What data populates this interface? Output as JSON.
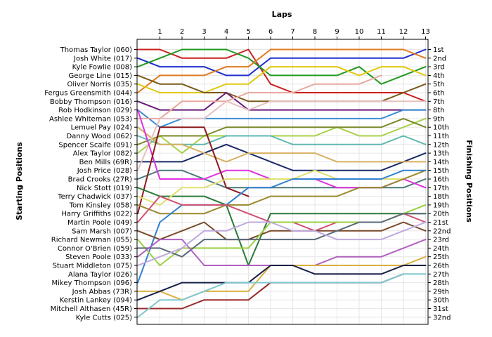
{
  "chart_data": {
    "type": "line",
    "title": "",
    "xlabel": "Laps",
    "ylabel_left": "Starting Positions",
    "ylabel_right": "Finishing Positions",
    "x": [
      0,
      1,
      2,
      3,
      4,
      5,
      6,
      7,
      8,
      9,
      10,
      11,
      12,
      13
    ],
    "xtick_labels": [
      "1",
      "2",
      "3",
      "4",
      "5",
      "6",
      "7",
      "8",
      "9",
      "10",
      "11",
      "12",
      "13"
    ],
    "ylim": [
      1,
      32
    ],
    "y_inverted": true,
    "grid": true,
    "starting_labels": [
      "Thomas Taylor (060)",
      "Josh White (017)",
      "Kyle Fowlie (008)",
      "George Line (015)",
      "Oliver Norris (035)",
      "Fergus Greensmith (044)",
      "Bobby Thompson (016)",
      "Rob Hodkinson (029)",
      "Ashlee Whiteman (053)",
      "Lemuel Pay (024)",
      "Danny Wood (062)",
      "Spencer Scaife (091)",
      "Alex Taylor (082)",
      "Ben Mills (69R)",
      "Josh Price (028)",
      "Brad Crooks (27R)",
      "Nick Stott (019)",
      "Terry Chadwick (037)",
      "Tom Kinsley (058)",
      "Harry Griffiths (022)",
      "Martin Poole (049)",
      "Sam Marsh (007)",
      "Richard Newman (055)",
      "Connor O'Brien (059)",
      "Steven Poole (033)",
      "Stuart Middleton (075)",
      "Alana Taylor (026)",
      "Mikey Thompson (096)",
      "Josh Abbas (73R)",
      "Kerstin Lankey (094)",
      "Mitchell Althasen (45R)",
      "Kyle Cutts (025)"
    ],
    "finishing_labels": [
      "1st",
      "2nd",
      "3rd",
      "4th",
      "5th",
      "6th",
      "7th",
      "8th",
      "9th",
      "10th",
      "11th",
      "12th",
      "13th",
      "14th",
      "15th",
      "16th",
      "17th",
      "18th",
      "19th",
      "20th",
      "21st",
      "22nd",
      "23rd",
      "24th",
      "25th",
      "26th",
      "27th",
      "28th",
      "29th",
      "30th",
      "31st",
      "32nd"
    ],
    "series": [
      {
        "color": "#cc1f1f",
        "values": [
          1,
          1,
          2,
          2,
          2,
          1,
          5,
          6,
          6,
          6,
          6,
          6,
          6,
          7
        ]
      },
      {
        "color": "#1f2fcf",
        "values": [
          2,
          3,
          3,
          3,
          4,
          4,
          2,
          2,
          2,
          2,
          2,
          2,
          2,
          1
        ]
      },
      {
        "color": "#229922",
        "values": [
          3,
          2,
          1,
          1,
          1,
          2,
          4,
          4,
          4,
          4,
          3,
          5,
          4,
          3
        ]
      },
      {
        "color": "#e07b20",
        "values": [
          6,
          4,
          4,
          4,
          3,
          3,
          1,
          1,
          1,
          1,
          1,
          1,
          1,
          2
        ]
      },
      {
        "color": "#e0c812",
        "values": [
          5,
          6,
          6,
          6,
          5,
          5,
          3,
          3,
          3,
          3,
          4,
          3,
          3,
          4
        ]
      },
      {
        "color": "#7a5a1a",
        "values": [
          4,
          5,
          5,
          6,
          6,
          7,
          7,
          7,
          7,
          7,
          7,
          7,
          6,
          5
        ]
      },
      {
        "color": "#6a1a7a",
        "values": [
          7,
          8,
          8,
          8,
          6,
          8,
          8,
          8,
          8,
          8,
          8,
          8,
          8,
          8
        ]
      },
      {
        "color": "#3a8fd6",
        "values": [
          8,
          10,
          9,
          9,
          9,
          9,
          9,
          9,
          9,
          9,
          9,
          9,
          8,
          8
        ]
      },
      {
        "color": "#e8a8a0",
        "values": [
          9,
          9,
          7,
          7,
          7,
          6,
          6,
          6,
          5,
          5,
          5,
          4,
          null,
          null
        ]
      },
      {
        "color": "#a8d048",
        "values": [
          13,
          11,
          13,
          11,
          11,
          11,
          11,
          11,
          11,
          10,
          11,
          11,
          10,
          9
        ]
      },
      {
        "color": "#7a8a2a",
        "values": [
          12,
          11,
          11,
          11,
          10,
          10,
          10,
          10,
          10,
          10,
          10,
          10,
          9,
          10
        ]
      },
      {
        "color": "#60b8b0",
        "values": [
          11,
          12,
          12,
          12,
          11,
          11,
          11,
          12,
          12,
          12,
          12,
          12,
          11,
          12
        ]
      },
      {
        "color": "#1a2a6a",
        "values": [
          14,
          14,
          14,
          13,
          12,
          13,
          14,
          15,
          15,
          15,
          15,
          15,
          14,
          13
        ]
      },
      {
        "color": "#d8b060",
        "values": [
          10,
          12,
          12,
          13,
          14,
          13,
          13,
          13,
          13,
          14,
          14,
          14,
          14,
          14
        ]
      },
      {
        "color": "#e8c0c0",
        "values": [
          15,
          9,
          9,
          9,
          7,
          8,
          7,
          7,
          7,
          7,
          7,
          7,
          7,
          7
        ]
      },
      {
        "color": "#4a7a7a",
        "values": [
          16,
          15,
          15,
          16,
          17,
          17,
          17,
          17,
          17,
          17,
          17,
          17,
          17,
          16
        ]
      },
      {
        "color": "#e030e0",
        "values": [
          8,
          16,
          16,
          16,
          15,
          15,
          16,
          16,
          16,
          17,
          17,
          17,
          16,
          17
        ]
      },
      {
        "color": "#8a1a1a",
        "values": [
          20,
          10,
          10,
          10,
          17,
          18,
          null,
          null,
          null,
          null,
          null,
          null,
          null,
          null
        ]
      },
      {
        "color": "#2a7a3a",
        "values": [
          17,
          18,
          18,
          18,
          19,
          26,
          20,
          20,
          20,
          20,
          20,
          20,
          20,
          20
        ]
      },
      {
        "color": "#e0e070",
        "values": [
          18,
          19,
          17,
          17,
          16,
          16,
          16,
          16,
          15,
          16,
          16,
          16,
          16,
          15
        ]
      },
      {
        "color": "#9a8a2a",
        "values": [
          19,
          20,
          20,
          20,
          19,
          19,
          18,
          18,
          18,
          18,
          17,
          17,
          16,
          15
        ]
      },
      {
        "color": "#3080d0",
        "values": [
          28,
          21,
          19,
          19,
          19,
          17,
          17,
          16,
          16,
          16,
          16,
          16,
          15,
          15
        ]
      },
      {
        "color": "#d05070",
        "values": [
          21,
          18,
          19,
          19,
          19,
          20,
          21,
          21,
          22,
          21,
          21,
          21,
          20,
          21
        ]
      },
      {
        "color": "#7a4a2a",
        "values": [
          22,
          23,
          22,
          21,
          23,
          23,
          22,
          22,
          22,
          22,
          22,
          22,
          21,
          22
        ]
      },
      {
        "color": "#9ad040",
        "values": [
          23,
          26,
          24,
          24,
          24,
          24,
          21,
          21,
          21,
          21,
          21,
          21,
          20,
          19
        ]
      },
      {
        "color": "#5a6a7a",
        "values": [
          24,
          24,
          25,
          23,
          23,
          23,
          23,
          23,
          23,
          22,
          21,
          21,
          20,
          20
        ]
      },
      {
        "color": "#b060c0",
        "values": [
          25,
          23,
          23,
          26,
          26,
          26,
          26,
          26,
          26,
          25,
          25,
          25,
          24,
          23
        ]
      },
      {
        "color": "#c0a8e0",
        "values": [
          26,
          25,
          24,
          22,
          22,
          21,
          21,
          22,
          22,
          23,
          23,
          23,
          22,
          21
        ]
      },
      {
        "color": "#d8b040",
        "values": [
          29,
          29,
          30,
          29,
          29,
          29,
          26,
          26,
          26,
          26,
          26,
          26,
          26,
          25
        ]
      },
      {
        "color": "#9a2a2a",
        "values": [
          31,
          31,
          31,
          30,
          30,
          30,
          28,
          28,
          28,
          28,
          28,
          28,
          27,
          null
        ]
      },
      {
        "color": "#182048",
        "values": [
          30,
          29,
          28,
          28,
          28,
          28,
          26,
          26,
          27,
          27,
          27,
          27,
          26,
          26
        ]
      },
      {
        "color": "#80c8d0",
        "values": [
          32,
          30,
          30,
          29,
          28,
          28,
          28,
          28,
          28,
          28,
          28,
          28,
          27,
          27
        ]
      }
    ]
  }
}
